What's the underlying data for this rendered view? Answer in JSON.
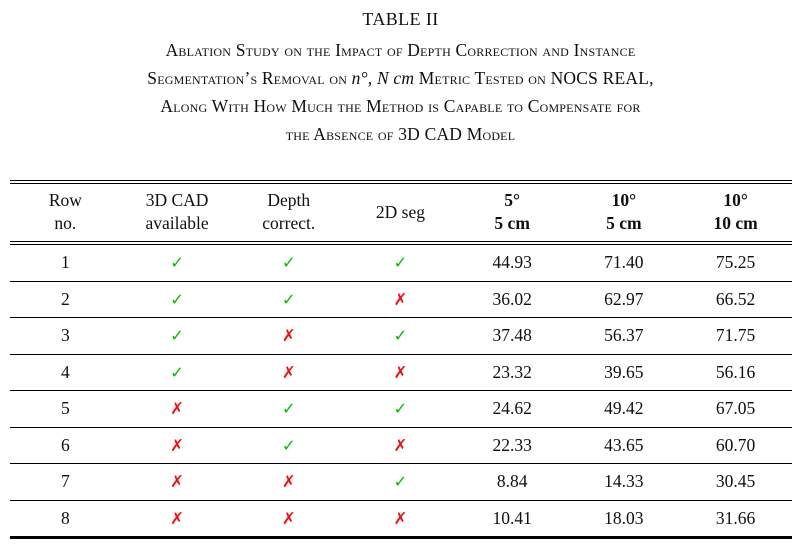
{
  "title": "TABLE II",
  "caption": {
    "lines": [
      {
        "text": "Ablation Study on the Impact of Depth Correction and Instance"
      },
      {
        "pre": "Segmentation’s Removal on ",
        "math": "n°, N cm",
        "post": " Metric Tested on NOCS REAL,"
      },
      {
        "text": "Along With How Much the Method is Capable to Compensate for"
      },
      {
        "text": "the Absence of 3D CAD Model"
      }
    ]
  },
  "glyphs": {
    "check": "✓",
    "cross": "✗"
  },
  "colors": {
    "check_green": "#00bf00",
    "cross_red": "#ee1111",
    "rule_black": "#000000",
    "text": "#0f0f0f"
  },
  "table": {
    "headers": [
      {
        "line1": "Row",
        "line2": "no."
      },
      {
        "line1": "3D CAD",
        "line2": "available"
      },
      {
        "line1": "Depth",
        "line2": "correct."
      },
      {
        "line1": "2D seg",
        "line2": ""
      },
      {
        "line1": "5°",
        "line2": "5 cm"
      },
      {
        "line1": "10°",
        "line2": "5 cm"
      },
      {
        "line1": "10°",
        "line2": "10 cm"
      }
    ],
    "rows": [
      {
        "no": "1",
        "cad": "check",
        "depth": "check",
        "seg": "check",
        "m5_5": "44.93",
        "m10_5": "71.40",
        "m10_10": "75.25"
      },
      {
        "no": "2",
        "cad": "check",
        "depth": "check",
        "seg": "cross",
        "m5_5": "36.02",
        "m10_5": "62.97",
        "m10_10": "66.52"
      },
      {
        "no": "3",
        "cad": "check",
        "depth": "cross",
        "seg": "check",
        "m5_5": "37.48",
        "m10_5": "56.37",
        "m10_10": "71.75"
      },
      {
        "no": "4",
        "cad": "check",
        "depth": "cross",
        "seg": "cross",
        "m5_5": "23.32",
        "m10_5": "39.65",
        "m10_10": "56.16"
      },
      {
        "no": "5",
        "cad": "cross",
        "depth": "check",
        "seg": "check",
        "m5_5": "24.62",
        "m10_5": "49.42",
        "m10_10": "67.05"
      },
      {
        "no": "6",
        "cad": "cross",
        "depth": "check",
        "seg": "cross",
        "m5_5": "22.33",
        "m10_5": "43.65",
        "m10_10": "60.70"
      },
      {
        "no": "7",
        "cad": "cross",
        "depth": "cross",
        "seg": "check",
        "m5_5": "8.84",
        "m10_5": "14.33",
        "m10_10": "30.45"
      },
      {
        "no": "8",
        "cad": "cross",
        "depth": "cross",
        "seg": "cross",
        "m5_5": "10.41",
        "m10_5": "18.03",
        "m10_10": "31.66"
      }
    ]
  }
}
